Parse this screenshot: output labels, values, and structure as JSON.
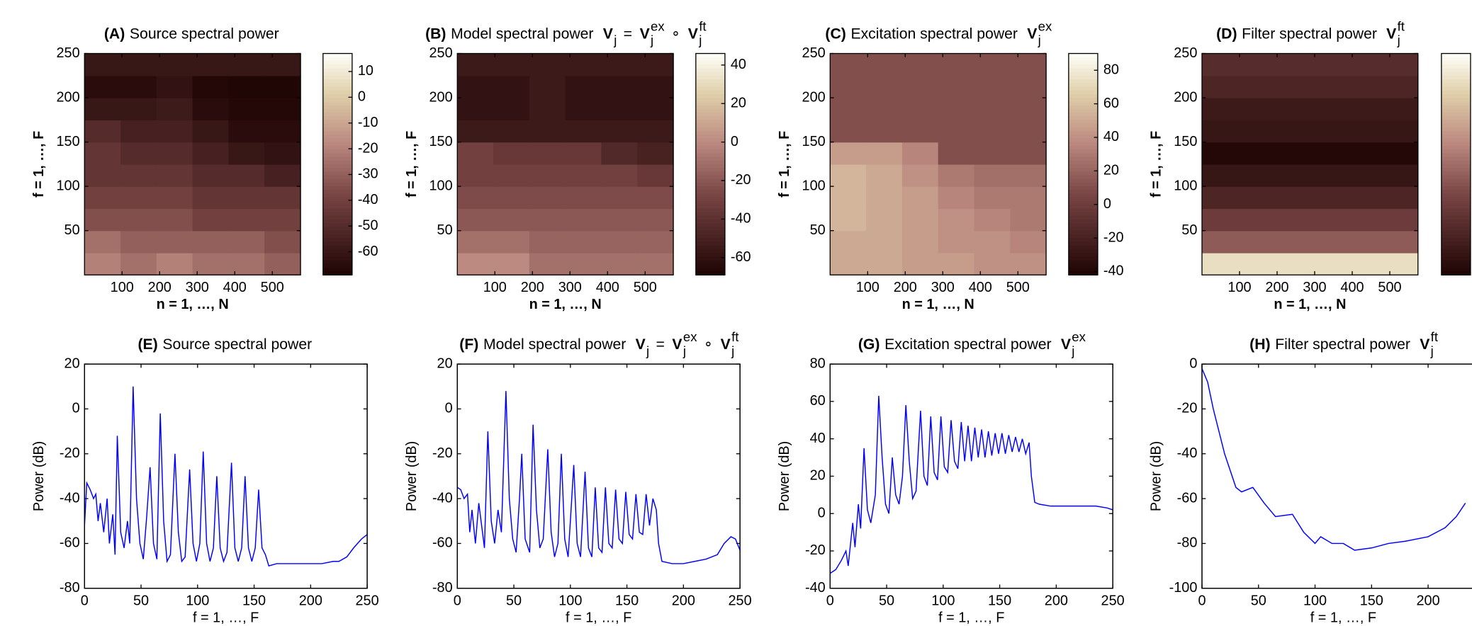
{
  "chart_data": [
    {
      "type": "heatmap",
      "label": "(A)",
      "title": "Source spectral power",
      "xlabel": "n = 1, …, N",
      "ylabel": "f = 1, …, F",
      "xlim": [
        0,
        575
      ],
      "ylim": [
        0,
        250
      ],
      "xticks": [
        100,
        200,
        300,
        400,
        500
      ],
      "yticks": [
        50,
        100,
        150,
        200,
        250
      ],
      "clim": [
        -69,
        17
      ],
      "cticks": [
        10,
        0,
        -10,
        -20,
        -30,
        -40,
        -50,
        -60
      ],
      "values": [
        [
          -20,
          -25,
          -20,
          -25,
          -25,
          -30
        ],
        [
          -25,
          -30,
          -30,
          -30,
          -30,
          -35
        ],
        [
          -35,
          -35,
          -35,
          -40,
          -40,
          -40
        ],
        [
          -40,
          -40,
          -40,
          -45,
          -45,
          -45
        ],
        [
          -45,
          -45,
          -45,
          -50,
          -50,
          -55
        ],
        [
          -45,
          -50,
          -50,
          -55,
          -60,
          -62
        ],
        [
          -50,
          -55,
          -55,
          -60,
          -65,
          -65
        ],
        [
          -60,
          -60,
          -58,
          -65,
          -67,
          -67
        ],
        [
          -65,
          -65,
          -62,
          -67,
          -68,
          -68
        ],
        [
          -60,
          -60,
          -60,
          -60,
          -60,
          -60
        ]
      ]
    },
    {
      "type": "heatmap",
      "label": "(B)",
      "title": "Model spectral power",
      "math": [
        {
          "base": "V",
          "sub": "j"
        },
        {
          "base": "="
        },
        {
          "base": "V",
          "sub": "j",
          "sup": "ex"
        },
        {
          "base": "∘"
        },
        {
          "base": "V",
          "sub": "j",
          "sup": "ft"
        }
      ],
      "xlabel": "n = 1, …, N",
      "ylabel": "f = 1, …, F",
      "xlim": [
        0,
        575
      ],
      "ylim": [
        0,
        250
      ],
      "xticks": [
        100,
        200,
        300,
        400,
        500
      ],
      "yticks": [
        50,
        100,
        150,
        200,
        250
      ],
      "clim": [
        -69,
        46
      ],
      "cticks": [
        40,
        20,
        0,
        -20,
        -40,
        -60
      ],
      "values": [
        [
          0,
          0,
          -10,
          -10,
          -10,
          -10
        ],
        [
          -10,
          -10,
          -15,
          -15,
          -15,
          -15
        ],
        [
          -20,
          -20,
          -20,
          -20,
          -20,
          -20
        ],
        [
          -25,
          -25,
          -25,
          -25,
          -25,
          -25
        ],
        [
          -30,
          -30,
          -30,
          -30,
          -30,
          -35
        ],
        [
          -30,
          -35,
          -35,
          -35,
          -45,
          -50
        ],
        [
          -55,
          -55,
          -55,
          -55,
          -55,
          -55
        ],
        [
          -60,
          -60,
          -55,
          -60,
          -60,
          -60
        ],
        [
          -60,
          -60,
          -55,
          -60,
          -60,
          -60
        ],
        [
          -55,
          -55,
          -55,
          -55,
          -55,
          -55
        ]
      ]
    },
    {
      "type": "heatmap",
      "label": "(C)",
      "title": "Excitation spectral power",
      "math": [
        {
          "base": "V",
          "sub": "j",
          "sup": "ex"
        }
      ],
      "xlabel": "n = 1, …, N",
      "ylabel": "f = 1, …, F",
      "xlim": [
        0,
        575
      ],
      "ylim": [
        0,
        250
      ],
      "xticks": [
        100,
        200,
        300,
        400,
        500
      ],
      "yticks": [
        50,
        100,
        150,
        200,
        250
      ],
      "clim": [
        -42,
        90
      ],
      "cticks": [
        80,
        60,
        40,
        20,
        0,
        -20,
        -40
      ],
      "values": [
        [
          50,
          50,
          45,
          45,
          40,
          40
        ],
        [
          50,
          50,
          45,
          40,
          40,
          35
        ],
        [
          55,
          50,
          45,
          40,
          35,
          30
        ],
        [
          55,
          50,
          45,
          35,
          30,
          30
        ],
        [
          55,
          50,
          40,
          30,
          25,
          25
        ],
        [
          45,
          45,
          35,
          10,
          10,
          10
        ],
        [
          10,
          10,
          10,
          10,
          10,
          10
        ],
        [
          10,
          10,
          10,
          10,
          10,
          10
        ],
        [
          10,
          10,
          10,
          10,
          10,
          10
        ],
        [
          10,
          10,
          10,
          10,
          10,
          10
        ]
      ]
    },
    {
      "type": "heatmap",
      "label": "(D)",
      "title": "Filter spectral power",
      "math": [
        {
          "base": "V",
          "sub": "j",
          "sup": "ft"
        }
      ],
      "xlabel": "n = 1, …, N",
      "ylabel": "f = 1, …, F",
      "xlim": [
        0,
        575
      ],
      "ylim": [
        0,
        250
      ],
      "xticks": [
        100,
        200,
        300,
        400,
        500
      ],
      "yticks": [
        50,
        100,
        150,
        200,
        250
      ],
      "clim": [
        -80,
        0
      ],
      "cticks": [],
      "values": [
        [
          -10
        ],
        [
          -45
        ],
        [
          -55
        ],
        [
          -65
        ],
        [
          -72
        ],
        [
          -78
        ],
        [
          -72
        ],
        [
          -70
        ],
        [
          -65
        ],
        [
          -62
        ]
      ]
    },
    {
      "type": "line",
      "label": "(E)",
      "title": "Source spectral power",
      "xlabel": "f = 1, …, F",
      "ylabel": "Power (dB)",
      "color": "#0000ff",
      "xlim": [
        0,
        250
      ],
      "ylim": [
        -80,
        20
      ],
      "xticks": [
        0,
        50,
        100,
        150,
        200,
        250
      ],
      "yticks": [
        -80,
        -60,
        -40,
        -20,
        0,
        20
      ],
      "x": [
        0,
        2,
        5,
        8,
        10,
        12,
        14,
        17,
        20,
        22,
        25,
        27,
        29,
        32,
        35,
        38,
        40,
        43,
        46,
        49,
        52,
        55,
        58,
        61,
        64,
        67,
        70,
        73,
        76,
        80,
        83,
        86,
        89,
        93,
        96,
        99,
        102,
        105,
        108,
        111,
        114,
        117,
        120,
        123,
        126,
        130,
        133,
        136,
        139,
        142,
        145,
        148,
        151,
        154,
        157,
        160,
        163,
        170,
        180,
        190,
        200,
        210,
        220,
        225,
        232,
        238,
        245,
        250
      ],
      "values": [
        -52,
        -33,
        -36,
        -40,
        -38,
        -50,
        -42,
        -55,
        -40,
        -60,
        -47,
        -65,
        -12,
        -55,
        -62,
        -50,
        -60,
        10,
        -40,
        -60,
        -67,
        -48,
        -26,
        -60,
        -67,
        -2,
        -50,
        -68,
        -65,
        -20,
        -55,
        -68,
        -66,
        -27,
        -60,
        -68,
        -60,
        -19,
        -60,
        -68,
        -62,
        -30,
        -62,
        -68,
        -64,
        -24,
        -62,
        -68,
        -62,
        -30,
        -62,
        -68,
        -62,
        -36,
        -62,
        -65,
        -70,
        -69,
        -69,
        -69,
        -69,
        -69,
        -68,
        -68,
        -66,
        -62,
        -58,
        -56
      ]
    },
    {
      "type": "line",
      "label": "(F)",
      "title": "Model spectral power",
      "math": [
        {
          "base": "V",
          "sub": "j"
        },
        {
          "base": "="
        },
        {
          "base": "V",
          "sub": "j",
          "sup": "ex"
        },
        {
          "base": "∘"
        },
        {
          "base": "V",
          "sub": "j",
          "sup": "ft"
        }
      ],
      "xlabel": "f = 1, …, F",
      "ylabel": "Power (dB)",
      "color": "#0000ff",
      "xlim": [
        0,
        250
      ],
      "ylim": [
        -80,
        20
      ],
      "xticks": [
        0,
        50,
        100,
        150,
        200,
        250
      ],
      "yticks": [
        -80,
        -60,
        -40,
        -20,
        0,
        20
      ],
      "x": [
        0,
        3,
        6,
        9,
        11,
        13,
        16,
        19,
        21,
        24,
        27,
        30,
        33,
        36,
        39,
        43,
        46,
        49,
        52,
        55,
        57,
        60,
        64,
        67,
        70,
        73,
        76,
        80,
        83,
        86,
        89,
        92,
        95,
        98,
        100,
        103,
        106,
        109,
        113,
        116,
        119,
        122,
        125,
        128,
        131,
        134,
        137,
        140,
        143,
        146,
        149,
        152,
        155,
        158,
        161,
        164,
        167,
        170,
        173,
        176,
        178,
        181,
        190,
        200,
        210,
        220,
        230,
        236,
        242,
        246,
        250
      ],
      "values": [
        -35,
        -36,
        -40,
        -38,
        -55,
        -45,
        -60,
        -42,
        -50,
        -62,
        -10,
        -50,
        -60,
        -45,
        -55,
        8,
        -40,
        -58,
        -64,
        -40,
        -20,
        -58,
        -64,
        -7,
        -45,
        -62,
        -58,
        -18,
        -55,
        -66,
        -60,
        -20,
        -58,
        -66,
        -50,
        -25,
        -60,
        -66,
        -28,
        -62,
        -66,
        -35,
        -62,
        -64,
        -35,
        -60,
        -62,
        -36,
        -58,
        -60,
        -37,
        -56,
        -58,
        -38,
        -55,
        -56,
        -38,
        -52,
        -40,
        -45,
        -60,
        -68,
        -69,
        -69,
        -68,
        -67,
        -65,
        -60,
        -57,
        -58,
        -63
      ]
    },
    {
      "type": "line",
      "label": "(G)",
      "title": "Excitation spectral power",
      "math": [
        {
          "base": "V",
          "sub": "j",
          "sup": "ex"
        }
      ],
      "xlabel": "f = 1, …, F",
      "ylabel": "Power (dB)",
      "color": "#0000ff",
      "xlim": [
        0,
        250
      ],
      "ylim": [
        -40,
        80
      ],
      "xticks": [
        0,
        50,
        100,
        150,
        200,
        250
      ],
      "yticks": [
        -40,
        -20,
        0,
        20,
        40,
        60,
        80
      ],
      "x": [
        0,
        5,
        10,
        14,
        16,
        20,
        22,
        25,
        27,
        30,
        33,
        36,
        40,
        43,
        46,
        49,
        52,
        55,
        58,
        61,
        64,
        67,
        70,
        73,
        76,
        80,
        83,
        86,
        89,
        92,
        95,
        98,
        101,
        104,
        107,
        110,
        113,
        116,
        119,
        122,
        125,
        128,
        131,
        134,
        137,
        140,
        143,
        146,
        149,
        152,
        155,
        158,
        161,
        164,
        167,
        170,
        173,
        176,
        178,
        181,
        185,
        195,
        210,
        225,
        235,
        245,
        250
      ],
      "values": [
        -32,
        -30,
        -25,
        -20,
        -28,
        -5,
        -18,
        5,
        -8,
        35,
        2,
        -5,
        10,
        63,
        30,
        5,
        0,
        30,
        10,
        5,
        20,
        58,
        28,
        8,
        12,
        55,
        20,
        15,
        52,
        22,
        18,
        52,
        25,
        22,
        50,
        28,
        24,
        49,
        28,
        47,
        28,
        46,
        30,
        45,
        30,
        44,
        31,
        43,
        32,
        43,
        32,
        42,
        33,
        41,
        33,
        40,
        32,
        38,
        20,
        6,
        5,
        4,
        4,
        4,
        4,
        3,
        2
      ]
    },
    {
      "type": "line",
      "label": "(H)",
      "title": "Filter spectral power",
      "math": [
        {
          "base": "V",
          "sub": "j",
          "sup": "ft"
        }
      ],
      "xlabel": "f = 1, …, F",
      "ylabel": "Power (dB)",
      "color": "#0000ff",
      "xlim": [
        0,
        250
      ],
      "ylim": [
        -100,
        0
      ],
      "xticks": [
        0,
        50,
        100,
        150,
        200
      ],
      "yticks": [
        -100,
        -80,
        -60,
        -40,
        -20,
        0
      ],
      "x": [
        0,
        5,
        10,
        20,
        30,
        35,
        45,
        55,
        65,
        80,
        90,
        100,
        105,
        115,
        125,
        135,
        150,
        165,
        180,
        200,
        215,
        225,
        233
      ],
      "values": [
        -2,
        -8,
        -20,
        -40,
        -55,
        -57,
        -55,
        -62,
        -68,
        -67,
        -75,
        -80,
        -77,
        -80,
        -80,
        -83,
        -82,
        -80,
        -79,
        -77,
        -73,
        -68,
        -62
      ]
    }
  ]
}
